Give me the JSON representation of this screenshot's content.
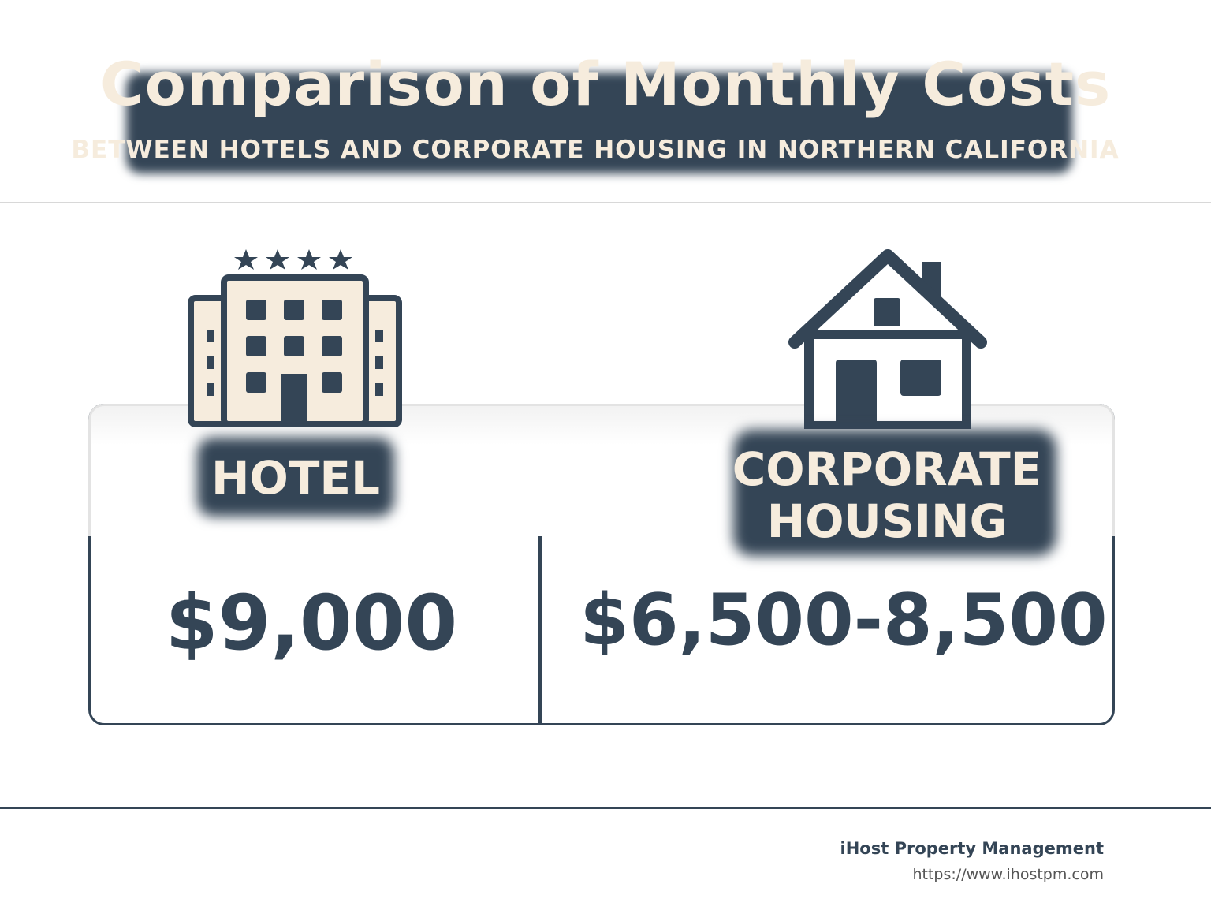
{
  "header": {
    "title": "Comparison of Monthly Costs",
    "subtitle": "BETWEEN HOTELS AND CORPORATE HOUSING IN NORTHERN CALIFORNIA"
  },
  "hotel": {
    "icon": "hotel-icon",
    "label": "HOTEL",
    "price": "$9,000"
  },
  "corporate_housing": {
    "icon": "house-icon",
    "label_line1": "CORPORATE",
    "label_line2": "HOUSING",
    "price": "$6,500-8,500"
  },
  "footer": {
    "brand": "iHost Property Management",
    "url": "https://www.ihostpm.com"
  },
  "colors": {
    "navy": "#344556",
    "cream": "#f6ecdd"
  }
}
